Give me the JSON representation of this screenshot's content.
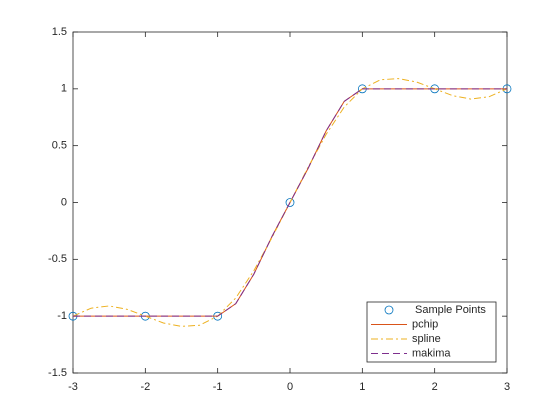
{
  "chart_data": {
    "type": "line",
    "xlim": [
      -3,
      3
    ],
    "ylim": [
      -1.5,
      1.5
    ],
    "xticks": [
      -3,
      -2,
      -1,
      0,
      1,
      2,
      3
    ],
    "yticks": [
      -1.5,
      -1,
      -0.5,
      0,
      0.5,
      1,
      1.5
    ],
    "legend": "lower right",
    "series": [
      {
        "name": "Sample Points",
        "color": "#0072bd",
        "style": "marker",
        "x": [
          -3,
          -2,
          -1,
          0,
          1,
          2,
          3
        ],
        "values": [
          -1,
          -1,
          -1,
          0,
          1,
          1,
          1
        ]
      },
      {
        "name": "pchip",
        "color": "#d95319",
        "style": "solid",
        "x": [
          -3,
          -2.75,
          -2.5,
          -2.25,
          -2,
          -1.75,
          -1.5,
          -1.25,
          -1,
          -0.75,
          -0.5,
          -0.25,
          0,
          0.25,
          0.5,
          0.75,
          1,
          1.25,
          1.5,
          1.75,
          2,
          2.25,
          2.5,
          2.75,
          3
        ],
        "values": [
          -1,
          -1,
          -1,
          -1,
          -1,
          -1,
          -1,
          -1,
          -1,
          -0.89,
          -0.63,
          -0.3,
          0,
          0.3,
          0.63,
          0.89,
          1,
          1,
          1,
          1,
          1,
          1,
          1,
          1,
          1
        ]
      },
      {
        "name": "spline",
        "color": "#edb120",
        "style": "dashdot",
        "x": [
          -3,
          -2.75,
          -2.5,
          -2.25,
          -2,
          -1.75,
          -1.5,
          -1.25,
          -1,
          -0.75,
          -0.5,
          -0.25,
          0,
          0.25,
          0.5,
          0.75,
          1,
          1.25,
          1.5,
          1.75,
          2,
          2.25,
          2.5,
          2.75,
          3
        ],
        "values": [
          -1,
          -0.93,
          -0.91,
          -0.94,
          -1,
          -1.06,
          -1.09,
          -1.08,
          -1,
          -0.84,
          -0.6,
          -0.31,
          0,
          0.31,
          0.6,
          0.84,
          1,
          1.08,
          1.09,
          1.06,
          1,
          0.94,
          0.91,
          0.93,
          1
        ]
      },
      {
        "name": "makima",
        "color": "#7e2f8e",
        "style": "dashed",
        "x": [
          -3,
          -2.75,
          -2.5,
          -2.25,
          -2,
          -1.75,
          -1.5,
          -1.25,
          -1,
          -0.75,
          -0.5,
          -0.25,
          0,
          0.25,
          0.5,
          0.75,
          1,
          1.25,
          1.5,
          1.75,
          2,
          2.25,
          2.5,
          2.75,
          3
        ],
        "values": [
          -1,
          -1,
          -1,
          -1,
          -1,
          -1,
          -1,
          -1,
          -1,
          -0.89,
          -0.63,
          -0.3,
          0,
          0.3,
          0.63,
          0.89,
          1,
          1,
          1,
          1,
          1,
          1,
          1,
          1,
          1
        ]
      }
    ]
  }
}
